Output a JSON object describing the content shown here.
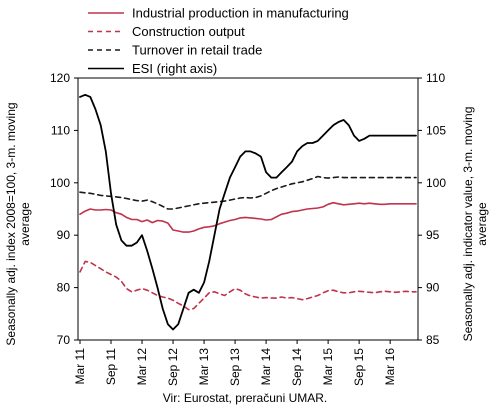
{
  "chart_data": {
    "type": "line",
    "title": "",
    "legend_position": "top-left",
    "grid": false,
    "x_ticks": [
      "Mar 11",
      "Sep 11",
      "Mar 12",
      "Sep 12",
      "Mar 13",
      "Sep 13",
      "Mar 14",
      "Sep 14",
      "Mar 15",
      "Sep 15",
      "Mar 16"
    ],
    "x_range": [
      "Mar 11",
      "Jul 16"
    ],
    "y_left": {
      "label": "Seasonally adj. index 2008=100, 3-m. moving average",
      "label_lines": [
        "Seasonally adj. index 2008=100, 3-m. moving",
        "average"
      ],
      "range": [
        70,
        120
      ],
      "ticks": [
        70,
        80,
        90,
        100,
        110,
        120
      ]
    },
    "y_right": {
      "label": "Seasonally adj. indicator value, 3-m. moving average",
      "label_lines": [
        "Seasonally adj. indicator value, 3-m. moving",
        "average"
      ],
      "range": [
        85,
        110
      ],
      "ticks": [
        85,
        90,
        95,
        100,
        105,
        110
      ]
    },
    "source_note": "Vir: Eurostat, preračuni UMAR.",
    "series": [
      {
        "name": "Industrial production in manufacturing",
        "axis": "left",
        "color": "#c0334d",
        "dash": "solid",
        "values": [
          94.0,
          94.6,
          95.0,
          94.8,
          94.8,
          94.9,
          94.8,
          94.3,
          94.0,
          93.4,
          93.0,
          93.0,
          92.6,
          92.9,
          92.4,
          92.8,
          92.7,
          92.3,
          91.0,
          90.8,
          90.6,
          90.6,
          90.8,
          91.2,
          91.5,
          91.6,
          91.8,
          92.2,
          92.5,
          92.8,
          93.0,
          93.3,
          93.4,
          93.3,
          93.2,
          93.1,
          92.9,
          93.0,
          93.5,
          94.0,
          94.2,
          94.5,
          94.6,
          94.8,
          95.0,
          95.1,
          95.2,
          95.4,
          95.9,
          96.2,
          96.0,
          95.8,
          95.9,
          96.0,
          96.1,
          96.0,
          96.1,
          96.0,
          95.9,
          95.9,
          96.0,
          96.0,
          96.0,
          96.0,
          96.0,
          96.0
        ]
      },
      {
        "name": "Construction output",
        "axis": "left",
        "color": "#c0334d",
        "dash": "dashed",
        "values": [
          83.0,
          85.0,
          84.8,
          84.2,
          83.6,
          83.0,
          82.5,
          82.0,
          81.2,
          79.8,
          79.2,
          79.5,
          79.8,
          79.5,
          79.0,
          78.5,
          78.2,
          78.0,
          77.6,
          77.0,
          76.5,
          75.8,
          76.0,
          77.0,
          78.0,
          79.0,
          79.2,
          78.8,
          78.5,
          79.2,
          79.8,
          79.5,
          78.8,
          78.4,
          78.2,
          78.0,
          78.1,
          78.0,
          78.0,
          78.2,
          78.0,
          78.1,
          77.9,
          77.7,
          77.9,
          78.2,
          78.5,
          79.0,
          79.4,
          79.5,
          79.2,
          79.0,
          79.0,
          79.2,
          79.3,
          79.2,
          79.1,
          79.0,
          79.2,
          79.3,
          79.2,
          79.1,
          79.2,
          79.3,
          79.2,
          79.2
        ]
      },
      {
        "name": "Turnover in retail trade",
        "axis": "left",
        "color": "#1a1a1a",
        "dash": "dashed",
        "values": [
          98.2,
          98.1,
          98.0,
          97.8,
          97.6,
          97.5,
          97.4,
          97.3,
          97.2,
          97.0,
          96.8,
          96.6,
          96.5,
          96.7,
          96.4,
          96.0,
          95.5,
          95.0,
          95.0,
          95.2,
          95.4,
          95.6,
          95.8,
          96.0,
          96.1,
          96.2,
          96.3,
          96.4,
          96.5,
          96.7,
          96.9,
          97.1,
          97.2,
          97.1,
          97.2,
          97.5,
          98.0,
          98.5,
          98.9,
          99.2,
          99.5,
          99.8,
          100.0,
          100.2,
          100.5,
          100.8,
          101.2,
          101.0,
          100.9,
          101.0,
          101.1,
          101.0,
          101.0,
          101.0,
          101.0,
          101.0,
          101.0,
          101.0,
          101.0,
          101.0,
          101.0,
          101.0,
          101.0,
          101.0,
          101.0,
          101.0
        ]
      },
      {
        "name": "ESI (right axis)",
        "axis": "right",
        "color": "#000000",
        "dash": "solid",
        "values": [
          108.2,
          108.4,
          108.2,
          107.0,
          105.5,
          103.0,
          99.0,
          96.0,
          94.5,
          94.0,
          94.0,
          94.3,
          95.0,
          93.5,
          91.8,
          90.0,
          88.0,
          86.5,
          86.0,
          86.5,
          88.0,
          89.5,
          89.8,
          89.5,
          90.5,
          92.5,
          95.0,
          97.5,
          99.0,
          100.5,
          101.5,
          102.5,
          103.0,
          103.0,
          102.8,
          102.5,
          101.0,
          100.5,
          100.5,
          101.0,
          101.5,
          102.0,
          103.0,
          103.5,
          103.8,
          103.8,
          104.0,
          104.5,
          105.0,
          105.5,
          105.8,
          106.0,
          105.5,
          104.5,
          104.0,
          104.2,
          104.5,
          104.5,
          104.5,
          104.5,
          104.5,
          104.5,
          104.5,
          104.5,
          104.5,
          104.5
        ]
      }
    ]
  }
}
